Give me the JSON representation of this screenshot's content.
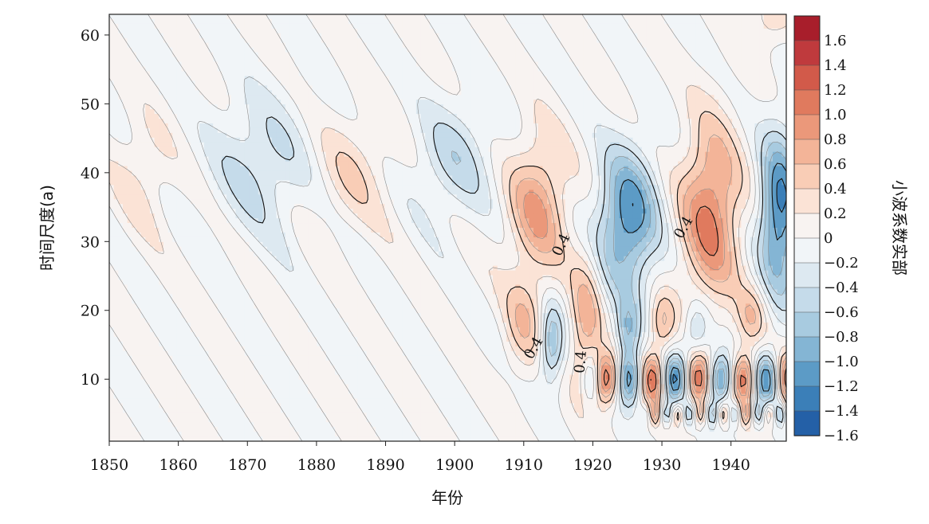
{
  "chart_data": {
    "type": "heatmap",
    "subtype": "filled-contour (wavelet coefficients)",
    "xlabel": "年份",
    "ylabel": "时间尺度(a)",
    "xlim": [
      1850,
      1948
    ],
    "ylim": [
      1,
      63
    ],
    "x_ticks": [
      1850,
      1860,
      1870,
      1880,
      1890,
      1900,
      1910,
      1920,
      1930,
      1940
    ],
    "y_ticks": [
      10,
      20,
      30,
      40,
      50,
      60
    ],
    "colorbar": {
      "label": "小波系数实部",
      "range": [
        -1.6,
        1.8
      ],
      "ticks": [
        "1.6",
        "1.4",
        "1.2",
        "1.0",
        "0.8",
        "0.6",
        "0.4",
        "0.2",
        "0",
        "−0.2",
        "−0.4",
        "−0.6",
        "−0.8",
        "−1.0",
        "−1.2",
        "−1.4",
        "−1.6"
      ],
      "bins": [
        {
          "lo": 1.6,
          "hi": 1.8,
          "color": "#a81e2b"
        },
        {
          "lo": 1.4,
          "hi": 1.6,
          "color": "#bf3a3d"
        },
        {
          "lo": 1.2,
          "hi": 1.4,
          "color": "#d25a4a"
        },
        {
          "lo": 1.0,
          "hi": 1.2,
          "color": "#e07a5e"
        },
        {
          "lo": 0.8,
          "hi": 1.0,
          "color": "#eb987a"
        },
        {
          "lo": 0.6,
          "hi": 0.8,
          "color": "#f3b498"
        },
        {
          "lo": 0.4,
          "hi": 0.6,
          "color": "#f9cdb6"
        },
        {
          "lo": 0.2,
          "hi": 0.4,
          "color": "#fbe3d6"
        },
        {
          "lo": 0.0,
          "hi": 0.2,
          "color": "#f8f3f1"
        },
        {
          "lo": -0.2,
          "hi": 0.0,
          "color": "#f1f5f8"
        },
        {
          "lo": -0.4,
          "hi": -0.2,
          "color": "#dde9f1"
        },
        {
          "lo": -0.6,
          "hi": -0.4,
          "color": "#c5dbea"
        },
        {
          "lo": -0.8,
          "hi": -0.6,
          "color": "#a8cbe0"
        },
        {
          "lo": -1.0,
          "hi": -0.8,
          "color": "#84b5d4"
        },
        {
          "lo": -1.2,
          "hi": -1.0,
          "color": "#5c9bc6"
        },
        {
          "lo": -1.4,
          "hi": -1.2,
          "color": "#3b7fb8"
        },
        {
          "lo": -1.6,
          "hi": -1.4,
          "color": "#2460a7"
        }
      ]
    },
    "field_model": {
      "description_of_source": "wavelet real part field",
      "background": [
        {
          "x": 1855,
          "y": 40,
          "amp": 0.25,
          "sx": 3,
          "sy": 6
        },
        {
          "x": 1872,
          "y": 41,
          "amp": -0.45,
          "sx": 5,
          "sy": 7
        },
        {
          "x": 1885,
          "y": 40,
          "amp": 0.35,
          "sx": 4,
          "sy": 6
        },
        {
          "x": 1900,
          "y": 42,
          "amp": -0.45,
          "sx": 4,
          "sy": 6
        },
        {
          "x": 1912,
          "y": 35,
          "amp": 0.8,
          "sx": 3,
          "sy": 7
        },
        {
          "x": 1910,
          "y": 18,
          "amp": 0.5,
          "sx": 2,
          "sy": 5
        },
        {
          "x": 1914,
          "y": 15,
          "amp": -0.85,
          "sx": 1.2,
          "sy": 4
        },
        {
          "x": 1919,
          "y": 18,
          "amp": 0.7,
          "sx": 1.6,
          "sy": 7
        },
        {
          "x": 1925,
          "y": 33,
          "amp": -1.2,
          "sx": 3,
          "sy": 7
        },
        {
          "x": 1925,
          "y": 17,
          "amp": -0.7,
          "sx": 1.2,
          "sy": 3
        },
        {
          "x": 1930,
          "y": 18,
          "amp": 0.6,
          "sx": 1.3,
          "sy": 3
        },
        {
          "x": 1935,
          "y": 17,
          "amp": -0.6,
          "sx": 1.3,
          "sy": 3
        },
        {
          "x": 1937,
          "y": 34,
          "amp": 1.05,
          "sx": 3,
          "sy": 9
        },
        {
          "x": 1943,
          "y": 19,
          "amp": 0.5,
          "sx": 1.5,
          "sy": 3
        },
        {
          "x": 1947,
          "y": 34,
          "amp": -1.3,
          "sx": 2,
          "sy": 8
        },
        {
          "x": 1946,
          "y": 63,
          "amp": 0.4,
          "sx": 2,
          "sy": 3
        }
      ],
      "oscillation_band": {
        "center_y": 10,
        "width_y": 2.6,
        "amp": 1.15,
        "period_years": 6.6,
        "x_start": 1918,
        "x_end": 1948
      },
      "short_band": {
        "center_y": 5,
        "width_y": 1.2,
        "amp": 0.6,
        "period_years": 3.3,
        "x_start": 1926,
        "x_end": 1948
      },
      "labeled_contour_value": 0.4
    },
    "contour_labels": [
      {
        "text": "0.4",
        "x": 1915.5,
        "y": 29.5,
        "angle": -65
      },
      {
        "text": "0.4",
        "x": 1933.2,
        "y": 32,
        "angle": -60
      },
      {
        "text": "0.4",
        "x": 1911.5,
        "y": 14.5,
        "angle": -60
      },
      {
        "text": "0.4",
        "x": 1918.3,
        "y": 12.5,
        "angle": -85
      }
    ]
  }
}
